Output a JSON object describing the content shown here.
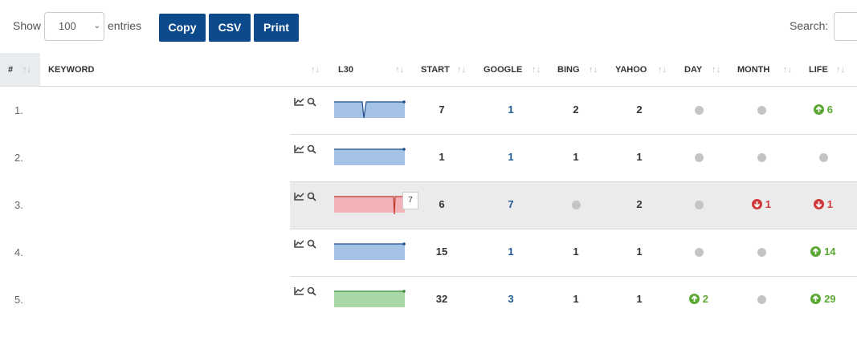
{
  "controls": {
    "show": "Show",
    "length": "100",
    "entries": "entries",
    "buttons": [
      "Copy",
      "CSV",
      "Print"
    ],
    "search": "Search:"
  },
  "table": {
    "headers": [
      "#",
      "KEYWORD",
      "L30",
      "START",
      "GOOGLE",
      "BING",
      "YAHOO",
      "DAY",
      "MONTH",
      "LIFE"
    ],
    "rows": [
      {
        "rank": "1.",
        "start": 7,
        "google": 1,
        "bing": 2,
        "yahoo": 2,
        "day": null,
        "month": null,
        "life": {
          "dir": "up",
          "value": 6
        },
        "spark": "#a4c2e6",
        "line": "#1f4e8c"
      },
      {
        "rank": "2.",
        "start": 1,
        "google": 1,
        "bing": 1,
        "yahoo": 1,
        "day": null,
        "month": null,
        "life": null,
        "spark": "#a4c2e6",
        "line": "#1f4e8c"
      },
      {
        "rank": "3.",
        "start": 6,
        "google": 7,
        "bing": null,
        "yahoo": 2,
        "day": null,
        "month": {
          "dir": "down",
          "value": 1
        },
        "life": {
          "dir": "down",
          "value": 1
        },
        "spark": "#f2b3b8",
        "line": "#c0392b",
        "tooltip": "7"
      },
      {
        "rank": "4.",
        "start": 15,
        "google": 1,
        "bing": 1,
        "yahoo": 1,
        "day": null,
        "month": null,
        "life": {
          "dir": "up",
          "value": 14
        },
        "spark": "#a4c2e6",
        "line": "#1f4e8c"
      },
      {
        "rank": "5.",
        "start": 32,
        "google": 3,
        "bing": 1,
        "yahoo": 1,
        "day": {
          "dir": "up",
          "value": 2
        },
        "month": null,
        "life": {
          "dir": "up",
          "value": 29
        },
        "spark": "#a8d8a8",
        "line": "#3c8c3c"
      }
    ]
  }
}
